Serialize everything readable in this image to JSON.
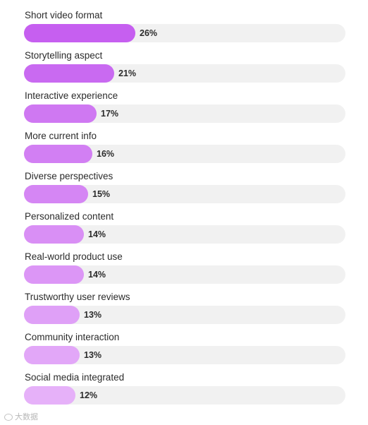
{
  "chart_data": {
    "type": "bar",
    "orientation": "horizontal",
    "title": "",
    "xlabel": "",
    "ylabel": "",
    "xlim": [
      0,
      75
    ],
    "grid": false,
    "categories": [
      "Short video format",
      "Storytelling aspect",
      "Interactive experience",
      "More current info",
      "Diverse perspectives",
      "Personalized content",
      "Real-world product use",
      "Trustworthy user reviews",
      "Community interaction",
      "Social media integrated"
    ],
    "values": [
      26,
      21,
      17,
      16,
      15,
      14,
      14,
      13,
      13,
      12
    ],
    "value_labels": [
      "26%",
      "21%",
      "17%",
      "16%",
      "15%",
      "14%",
      "14%",
      "13%",
      "13%",
      "12%"
    ],
    "bar_colors": [
      "#c65ff0",
      "#c96af1",
      "#cf78f2",
      "#d27ff3",
      "#d586f4",
      "#d98ff5",
      "#dc96f6",
      "#dfa0f7",
      "#e2a7f8",
      "#e6b1f9"
    ],
    "track_color": "#f1f1f1"
  },
  "watermark": {
    "text": "大数据"
  }
}
